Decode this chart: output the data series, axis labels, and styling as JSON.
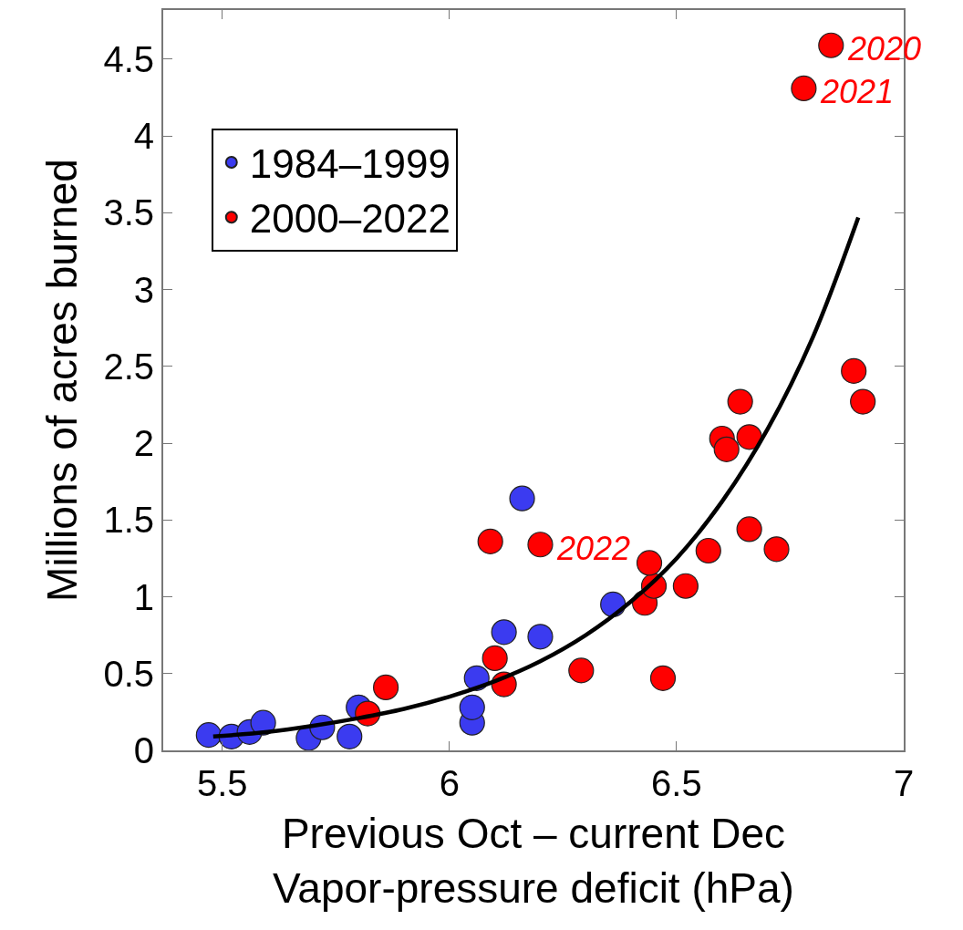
{
  "chart_data": {
    "type": "scatter",
    "xlabel": "Previous Oct – current Dec\nVapor-pressure deficit (hPa)",
    "ylabel": "Millions of acres burned",
    "xlim": [
      5.37,
      7.0
    ],
    "xticks": [
      5.5,
      6,
      6.5,
      7
    ],
    "ylim": [
      0,
      4.82
    ],
    "yticks": [
      0,
      0.5,
      1,
      1.5,
      2,
      2.5,
      3,
      3.5,
      4,
      4.5
    ],
    "grid": false,
    "legend": "top left",
    "marker": "circle",
    "series": [
      {
        "name": "1984–1999",
        "color": "#3b3bf0",
        "x": [
          5.47,
          5.52,
          5.56,
          5.59,
          5.69,
          5.72,
          5.78,
          5.8,
          6.05,
          6.05,
          6.06,
          6.12,
          6.2,
          6.16,
          6.36
        ],
        "values": [
          0.1,
          0.09,
          0.12,
          0.18,
          0.08,
          0.15,
          0.09,
          0.28,
          0.18,
          0.28,
          0.47,
          0.77,
          0.74,
          1.64,
          0.95
        ]
      },
      {
        "name": "2000–2022",
        "color": "#ff0000",
        "x": [
          5.82,
          5.86,
          6.1,
          6.12,
          6.09,
          6.2,
          6.29,
          6.47,
          6.43,
          6.45,
          6.44,
          6.52,
          6.57,
          6.66,
          6.72,
          6.6,
          6.61,
          6.66,
          6.64,
          6.89,
          6.91,
          6.84,
          6.78
        ],
        "values": [
          0.24,
          0.41,
          0.6,
          0.43,
          1.36,
          1.34,
          0.52,
          0.47,
          0.96,
          1.07,
          1.22,
          1.07,
          1.3,
          1.44,
          1.31,
          2.03,
          1.96,
          2.04,
          2.27,
          2.47,
          2.27,
          4.59,
          4.31
        ]
      },
      {
        "type": "line",
        "marker": "none",
        "color": "#000000",
        "x": [
          5.48,
          5.6,
          5.7,
          5.8,
          5.9,
          6.0,
          6.1,
          6.2,
          6.3,
          6.4,
          6.5,
          6.6,
          6.7,
          6.8,
          6.9
        ],
        "values": [
          0.09,
          0.12,
          0.16,
          0.21,
          0.27,
          0.35,
          0.45,
          0.58,
          0.75,
          0.97,
          1.25,
          1.62,
          2.09,
          2.69,
          3.47
        ]
      }
    ],
    "annotations": [
      {
        "text": "2020",
        "x": 6.84,
        "y": 4.59
      },
      {
        "text": "2021",
        "x": 6.78,
        "y": 4.31
      },
      {
        "text": "2022",
        "x": 6.2,
        "y": 1.34
      }
    ]
  }
}
